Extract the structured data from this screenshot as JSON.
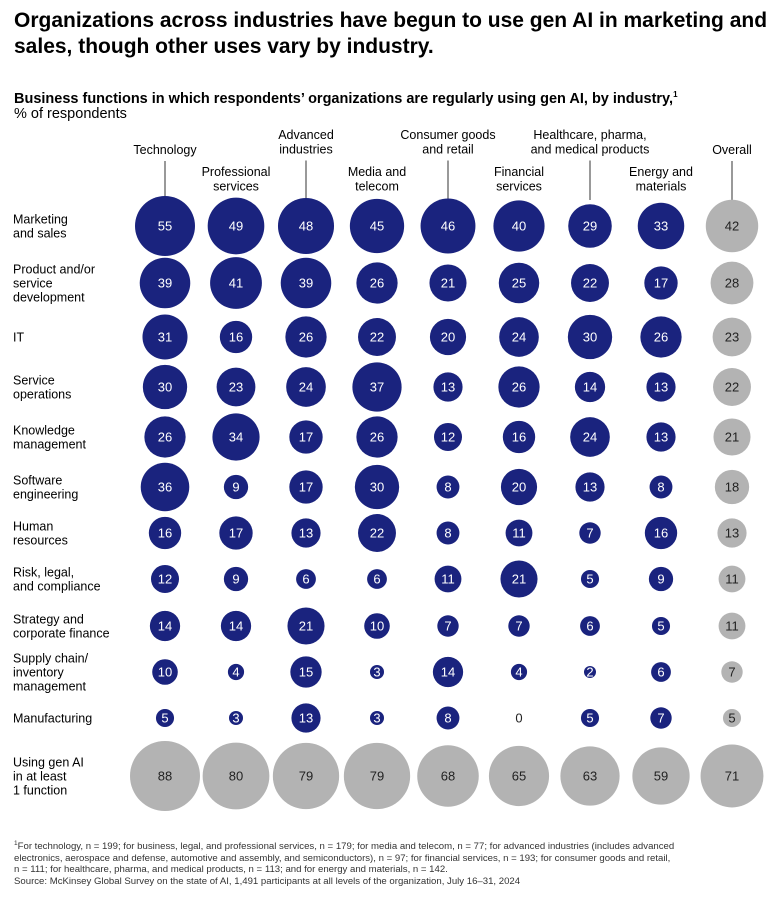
{
  "title": "Organizations across industries have begun to use gen AI in marketing and sales, though other uses vary by industry.",
  "subtitle": "Business functions in which respondents’ organizations are regularly using gen AI, by industry,",
  "subtitle_footnote_marker": "1",
  "unit_label": "% of respondents",
  "colors": {
    "industry": "#1a237e",
    "overall": "#b3b3b3",
    "leader_line": "#555555",
    "text_on_dark": "#ffffff",
    "text_on_light": "#222222"
  },
  "chart_data": {
    "type": "bubble-matrix",
    "title": "Business functions in which respondents’ organizations are regularly using gen AI, by industry",
    "unit": "% of respondents",
    "columns": [
      {
        "label": [
          "Technology"
        ],
        "kind": "industry"
      },
      {
        "label": [
          "Professional",
          "services"
        ],
        "kind": "industry"
      },
      {
        "label": [
          "Advanced",
          "industries"
        ],
        "kind": "industry"
      },
      {
        "label": [
          "Media and",
          "telecom"
        ],
        "kind": "industry"
      },
      {
        "label": [
          "Consumer goods",
          "and retail"
        ],
        "kind": "industry"
      },
      {
        "label": [
          "Financial",
          "services"
        ],
        "kind": "industry"
      },
      {
        "label": [
          "Healthcare, pharma,",
          "and medical products"
        ],
        "kind": "industry"
      },
      {
        "label": [
          "Energy and",
          "materials"
        ],
        "kind": "industry"
      },
      {
        "label": [
          "Overall"
        ],
        "kind": "overall"
      }
    ],
    "rows": [
      {
        "label": [
          "Marketing",
          "and sales"
        ],
        "values": [
          55,
          49,
          48,
          45,
          46,
          40,
          29,
          33,
          42
        ]
      },
      {
        "label": [
          "Product and/or",
          "service",
          "development"
        ],
        "values": [
          39,
          41,
          39,
          26,
          21,
          25,
          22,
          17,
          28
        ]
      },
      {
        "label": [
          "IT"
        ],
        "values": [
          31,
          16,
          26,
          22,
          20,
          24,
          30,
          26,
          23
        ]
      },
      {
        "label": [
          "Service",
          "operations"
        ],
        "values": [
          30,
          23,
          24,
          37,
          13,
          26,
          14,
          13,
          22
        ]
      },
      {
        "label": [
          "Knowledge",
          "management"
        ],
        "values": [
          26,
          34,
          17,
          26,
          12,
          16,
          24,
          13,
          21
        ]
      },
      {
        "label": [
          "Software",
          "engineering"
        ],
        "values": [
          36,
          9,
          17,
          30,
          8,
          20,
          13,
          8,
          18
        ]
      },
      {
        "label": [
          "Human",
          "resources"
        ],
        "values": [
          16,
          17,
          13,
          22,
          8,
          11,
          7,
          16,
          13
        ]
      },
      {
        "label": [
          "Risk, legal,",
          "and compliance"
        ],
        "values": [
          12,
          9,
          6,
          6,
          11,
          21,
          5,
          9,
          11
        ]
      },
      {
        "label": [
          "Strategy and",
          "corporate finance"
        ],
        "values": [
          14,
          14,
          21,
          10,
          7,
          7,
          6,
          5,
          11
        ]
      },
      {
        "label": [
          "Supply chain/",
          "inventory",
          "management"
        ],
        "values": [
          10,
          4,
          15,
          3,
          14,
          4,
          2,
          6,
          7
        ]
      },
      {
        "label": [
          "Manufacturing"
        ],
        "values": [
          5,
          3,
          13,
          3,
          8,
          0,
          5,
          7,
          5
        ]
      },
      {
        "label": [
          "Using gen AI",
          "in at least",
          "1 function"
        ],
        "values": [
          88,
          80,
          79,
          79,
          68,
          65,
          63,
          59,
          71
        ],
        "kind": "total"
      }
    ]
  },
  "footnote": {
    "marker": "1",
    "lines": [
      "For technology, n = 199; for business, legal, and professional services, n = 179; for media and telecom, n = 77; for advanced industries (includes advanced",
      "electronics, aerospace and defense, automotive and assembly, and semiconductors), n = 97; for financial services, n = 193; for consumer goods and retail,",
      "n = 111; for healthcare, pharma, and medical products, n = 113; and for energy and materials, n = 142."
    ],
    "source": "Source: McKinsey Global Survey on the state of AI, 1,491 participants at all levels of the organization, July 16–31, 2024"
  }
}
